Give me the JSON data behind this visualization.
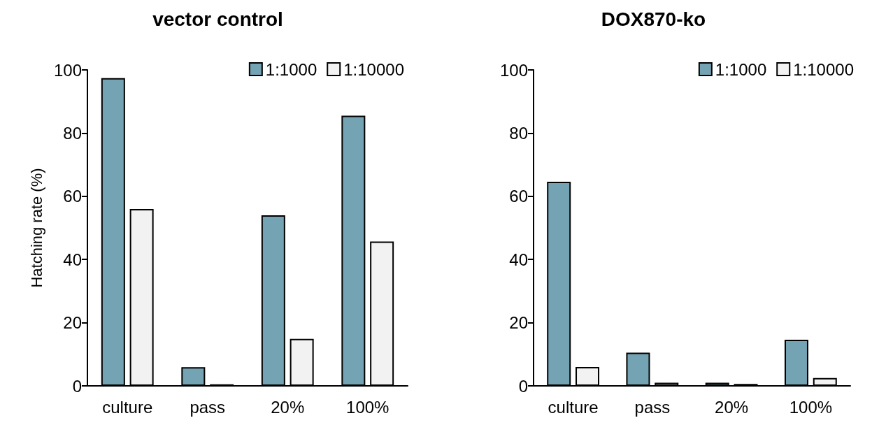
{
  "chart_data": [
    {
      "type": "bar",
      "title": "vector control",
      "ylabel": "Hatching rate (%)",
      "categories": [
        "culture",
        "pass",
        "20%",
        "100%"
      ],
      "series": [
        {
          "name": "1:1000",
          "color": "#74a3b3",
          "values": [
            97.4,
            5.9,
            54.0,
            85.5
          ]
        },
        {
          "name": "1:10000",
          "color": "#f2f2f2",
          "values": [
            56.0,
            0.5,
            14.9,
            45.7
          ]
        }
      ],
      "ylim": [
        0,
        100
      ],
      "yticks": [
        0,
        20,
        40,
        60,
        80,
        100
      ],
      "grid": false,
      "legend": "top right"
    },
    {
      "type": "bar",
      "title": "DOX870-ko",
      "categories": [
        "culture",
        "pass",
        "20%",
        "100%"
      ],
      "series": [
        {
          "name": "1:1000",
          "color": "#74a3b3",
          "values": [
            64.6,
            10.5,
            1.0,
            14.6
          ]
        },
        {
          "name": "1:10000",
          "color": "#f2f2f2",
          "values": [
            6.0,
            1.0,
            0.6,
            2.5
          ]
        }
      ],
      "ylim": [
        0,
        100
      ],
      "yticks": [
        0,
        20,
        40,
        60,
        80,
        100
      ],
      "grid": false,
      "legend": "top right"
    }
  ]
}
